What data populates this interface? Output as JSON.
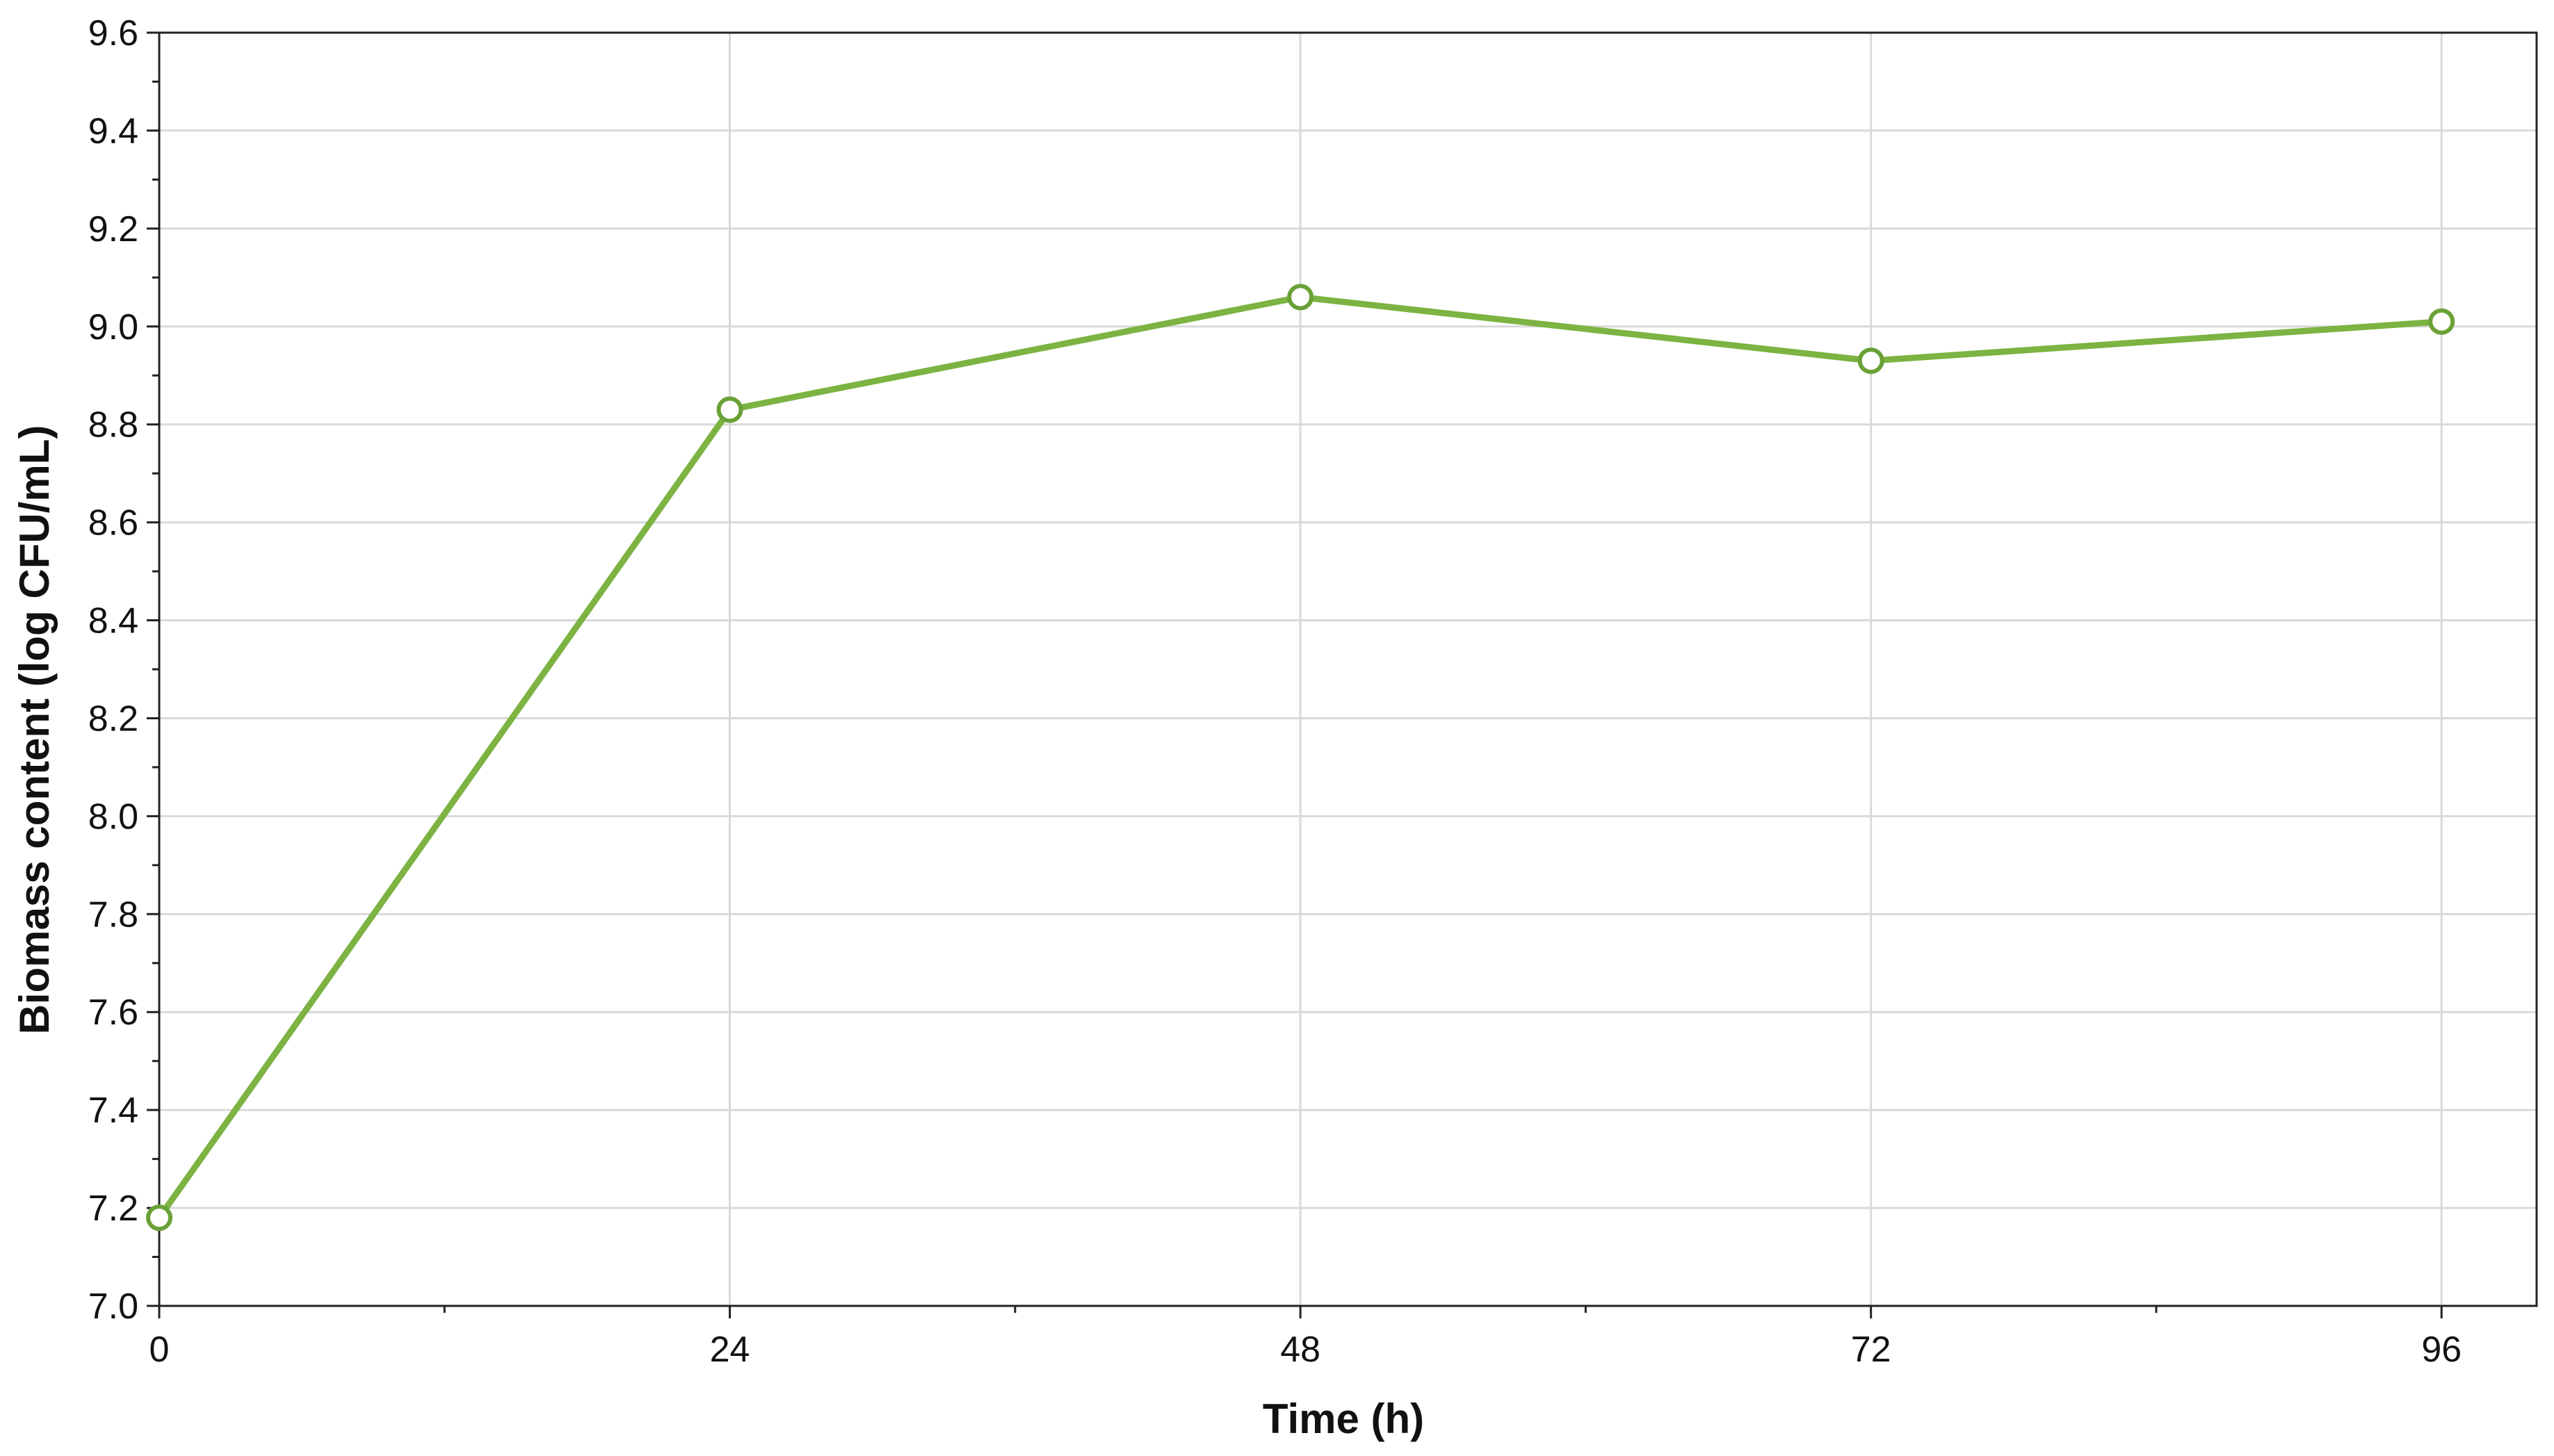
{
  "chart_data": {
    "type": "line",
    "title": "",
    "xlabel": "Time (h)",
    "ylabel": "Biomass content (log CFU/mL)",
    "xlim": [
      0,
      100
    ],
    "ylim": [
      7.0,
      9.6
    ],
    "x_ticks": [
      0,
      24,
      48,
      72,
      96
    ],
    "x_tick_labels": [
      "0",
      "24",
      "48",
      "72",
      "96"
    ],
    "y_ticks": [
      7.0,
      7.2,
      7.4,
      7.6,
      7.8,
      8.0,
      8.2,
      8.4,
      8.6,
      8.8,
      9.0,
      9.2,
      9.4,
      9.6
    ],
    "y_tick_labels": [
      "7.0",
      "7.2",
      "7.4",
      "7.6",
      "7.8",
      "8.0",
      "8.2",
      "8.4",
      "8.6",
      "8.8",
      "9.0",
      "9.2",
      "9.4",
      "9.6"
    ],
    "grid": true,
    "legend": "none",
    "series": [
      {
        "color": "#7cb342",
        "marker": "open-circle",
        "x": [
          0,
          24,
          48,
          72,
          96
        ],
        "values": [
          7.18,
          8.83,
          9.06,
          8.93,
          9.01
        ]
      }
    ]
  }
}
